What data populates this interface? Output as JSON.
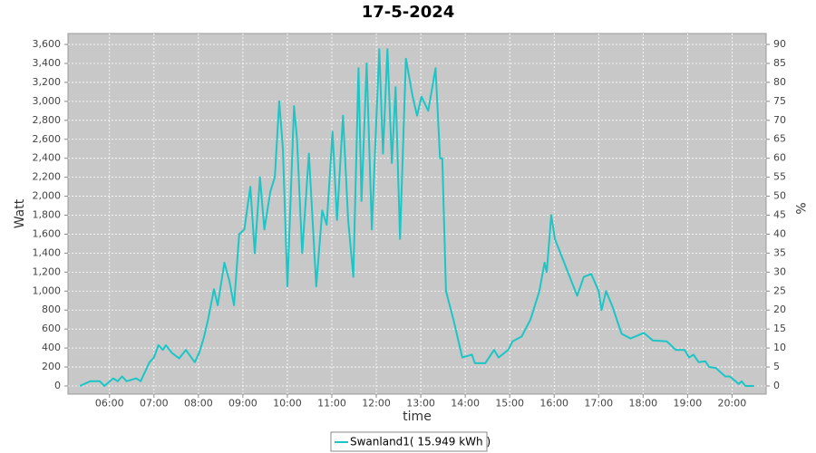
{
  "chart_data": {
    "type": "line",
    "title": "17-5-2024",
    "x_label": "time",
    "y_label": "Watt",
    "y2_label": "%",
    "x": [
      "05:20",
      "05:34",
      "05:47",
      "05:53",
      "06:05",
      "06:11",
      "06:17",
      "06:23",
      "06:36",
      "06:42",
      "06:48",
      "06:54",
      "07:00",
      "07:06",
      "07:12",
      "07:16",
      "07:24",
      "07:34",
      "07:43",
      "07:55",
      "08:01",
      "08:07",
      "08:13",
      "08:21",
      "08:26",
      "08:35",
      "08:42",
      "08:48",
      "08:55",
      "09:02",
      "09:10",
      "09:16",
      "09:23",
      "09:29",
      "09:37",
      "09:43",
      "09:49",
      "09:54",
      "10:00",
      "10:09",
      "10:13",
      "10:20",
      "10:29",
      "10:39",
      "10:47",
      "10:53",
      "11:01",
      "11:07",
      "11:15",
      "11:22",
      "11:29",
      "11:36",
      "11:40",
      "11:47",
      "11:54",
      "12:04",
      "12:09",
      "12:15",
      "12:21",
      "12:26",
      "12:32",
      "12:40",
      "12:49",
      "12:55",
      "13:01",
      "13:10",
      "13:20",
      "13:26",
      "13:29",
      "13:34",
      "13:44",
      "13:56",
      "14:09",
      "14:13",
      "14:27",
      "14:39",
      "14:45",
      "14:58",
      "15:04",
      "15:16",
      "15:28",
      "15:40",
      "15:47",
      "15:50",
      "15:56",
      "16:01",
      "16:11",
      "16:21",
      "16:31",
      "16:40",
      "16:50",
      "17:00",
      "17:04",
      "17:10",
      "17:18",
      "17:31",
      "17:43",
      "18:01",
      "18:13",
      "18:32",
      "18:44",
      "18:56",
      "19:02",
      "19:08",
      "19:15",
      "19:24",
      "19:29",
      "19:38",
      "19:51",
      "19:57",
      "20:03",
      "20:09",
      "20:13",
      "20:18",
      "20:30"
    ],
    "series": [
      {
        "name": "Swanland1( 15.949 kWh )",
        "color": "#1cc6c6",
        "values": [
          0,
          50,
          50,
          0,
          80,
          50,
          100,
          50,
          80,
          50,
          150,
          250,
          300,
          430,
          380,
          430,
          350,
          290,
          380,
          250,
          350,
          500,
          700,
          1020,
          850,
          1300,
          1100,
          850,
          1600,
          1650,
          2100,
          1400,
          2200,
          1650,
          2050,
          2200,
          3000,
          2500,
          1050,
          2950,
          2600,
          1400,
          2450,
          1050,
          1850,
          1700,
          2680,
          1750,
          2850,
          1750,
          1150,
          3350,
          1950,
          3400,
          1650,
          3550,
          2450,
          3550,
          2350,
          3150,
          1550,
          3450,
          3050,
          2850,
          3050,
          2900,
          3350,
          2400,
          2400,
          1000,
          700,
          300,
          330,
          240,
          240,
          380,
          300,
          380,
          470,
          520,
          700,
          1000,
          1300,
          1200,
          1800,
          1550,
          1350,
          1150,
          950,
          1150,
          1180,
          1000,
          800,
          1000,
          850,
          550,
          500,
          560,
          480,
          470,
          380,
          380,
          300,
          330,
          250,
          260,
          200,
          190,
          100,
          100,
          60,
          20,
          50,
          0,
          0
        ]
      }
    ],
    "xlim": [
      "05:04",
      "20:46"
    ],
    "xticks": [
      "06:00",
      "07:00",
      "08:00",
      "09:00",
      "10:00",
      "11:00",
      "12:00",
      "13:00",
      "14:00",
      "15:00",
      "16:00",
      "17:00",
      "18:00",
      "19:00",
      "20:00"
    ],
    "ylim": [
      -86,
      3715
    ],
    "yticks": [
      0,
      200,
      400,
      600,
      800,
      {
        "value": 1000,
        "label": "1,000"
      },
      {
        "value": 1200,
        "label": "1,200"
      },
      {
        "value": 1400,
        "label": "1,400"
      },
      {
        "value": 1600,
        "label": "1,600"
      },
      {
        "value": 1800,
        "label": "1,800"
      },
      {
        "value": 2000,
        "label": "2,000"
      },
      {
        "value": 2200,
        "label": "2,200"
      },
      {
        "value": 2400,
        "label": "2,400"
      },
      {
        "value": 2600,
        "label": "2,600"
      },
      {
        "value": 2800,
        "label": "2,800"
      },
      {
        "value": 3000,
        "label": "3,000"
      },
      {
        "value": 3200,
        "label": "3,200"
      },
      {
        "value": 3400,
        "label": "3,400"
      },
      {
        "value": 3600,
        "label": "3,600"
      }
    ],
    "y2lim": [
      -2.15,
      92.87
    ],
    "y2ticks": [
      0,
      5,
      10,
      15,
      20,
      25,
      30,
      35,
      40,
      45,
      50,
      55,
      60,
      65,
      70,
      75,
      80,
      85,
      90
    ],
    "grid": true
  }
}
